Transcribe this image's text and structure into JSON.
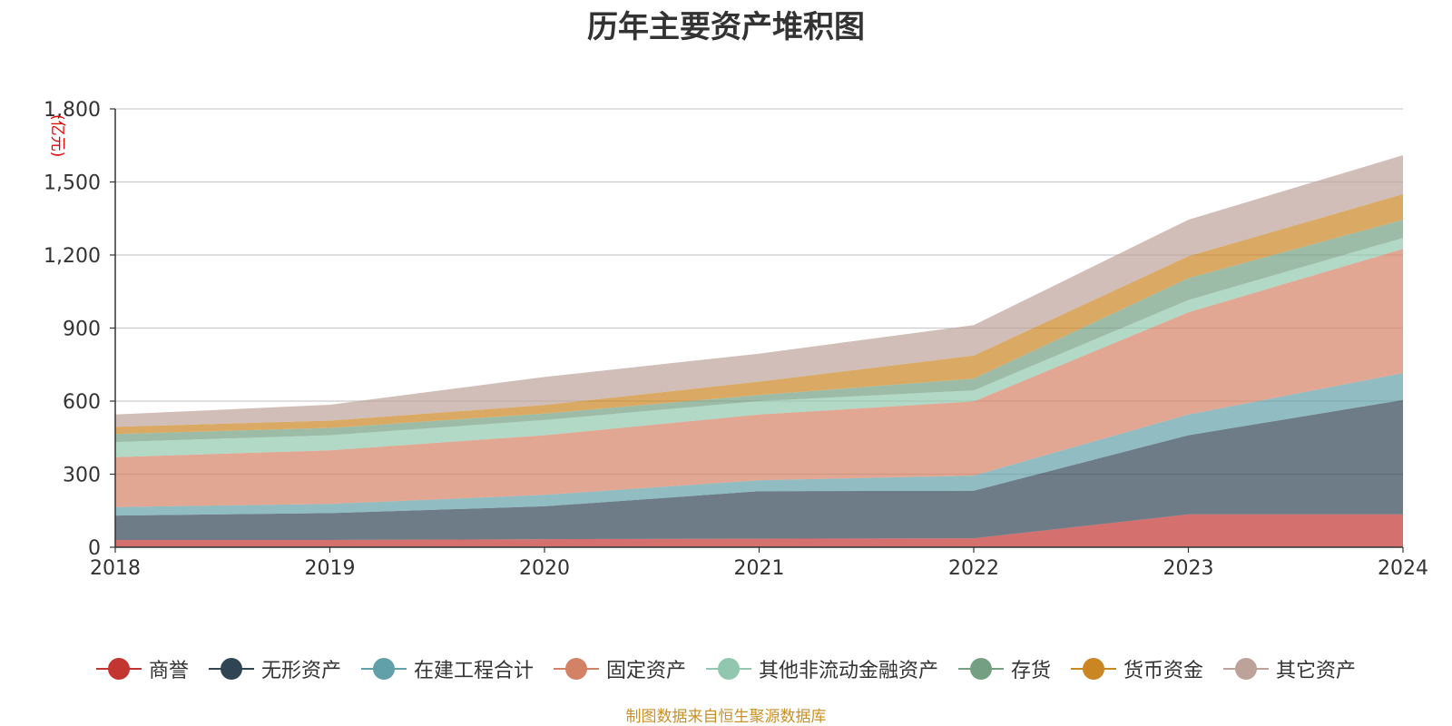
{
  "chart_data": {
    "type": "area",
    "stacked": true,
    "title": "历年主要资产堆积图",
    "unit": "(亿元)",
    "categories": [
      "2018",
      "2019",
      "2020",
      "2021",
      "2022",
      "2023",
      "2024"
    ],
    "ylim": [
      0,
      1800
    ],
    "yticks": [
      0,
      300,
      600,
      900,
      1200,
      1500,
      1800
    ],
    "ytick_labels": [
      "0",
      "300",
      "600",
      "900",
      "1,200",
      "1,500",
      "1,800"
    ],
    "grid": true,
    "legend_position": "bottom",
    "series": [
      {
        "name": "商誉",
        "color": "#c23531",
        "values": [
          30,
          30,
          33,
          35,
          37,
          135,
          135
        ]
      },
      {
        "name": "无形资产",
        "color": "#2f4554",
        "values": [
          100,
          110,
          135,
          195,
          195,
          325,
          470
        ]
      },
      {
        "name": "在建工程合计",
        "color": "#61a0a8",
        "values": [
          35,
          38,
          47,
          45,
          62,
          85,
          110
        ]
      },
      {
        "name": "固定资产",
        "color": "#d48265",
        "values": [
          205,
          220,
          245,
          270,
          305,
          420,
          510
        ]
      },
      {
        "name": "其他非流动金融资产",
        "color": "#91c7ae",
        "values": [
          62,
          62,
          62,
          55,
          45,
          50,
          45
        ]
      },
      {
        "name": "存货",
        "color": "#749f83",
        "values": [
          33,
          30,
          27,
          25,
          48,
          90,
          75
        ]
      },
      {
        "name": "货币资金",
        "color": "#ca8622",
        "values": [
          30,
          30,
          35,
          55,
          95,
          90,
          105
        ]
      },
      {
        "name": "其它资产",
        "color": "#bda29a",
        "values": [
          50,
          65,
          115,
          115,
          125,
          150,
          160
        ]
      }
    ],
    "source": "制图数据来自恒生聚源数据库"
  }
}
